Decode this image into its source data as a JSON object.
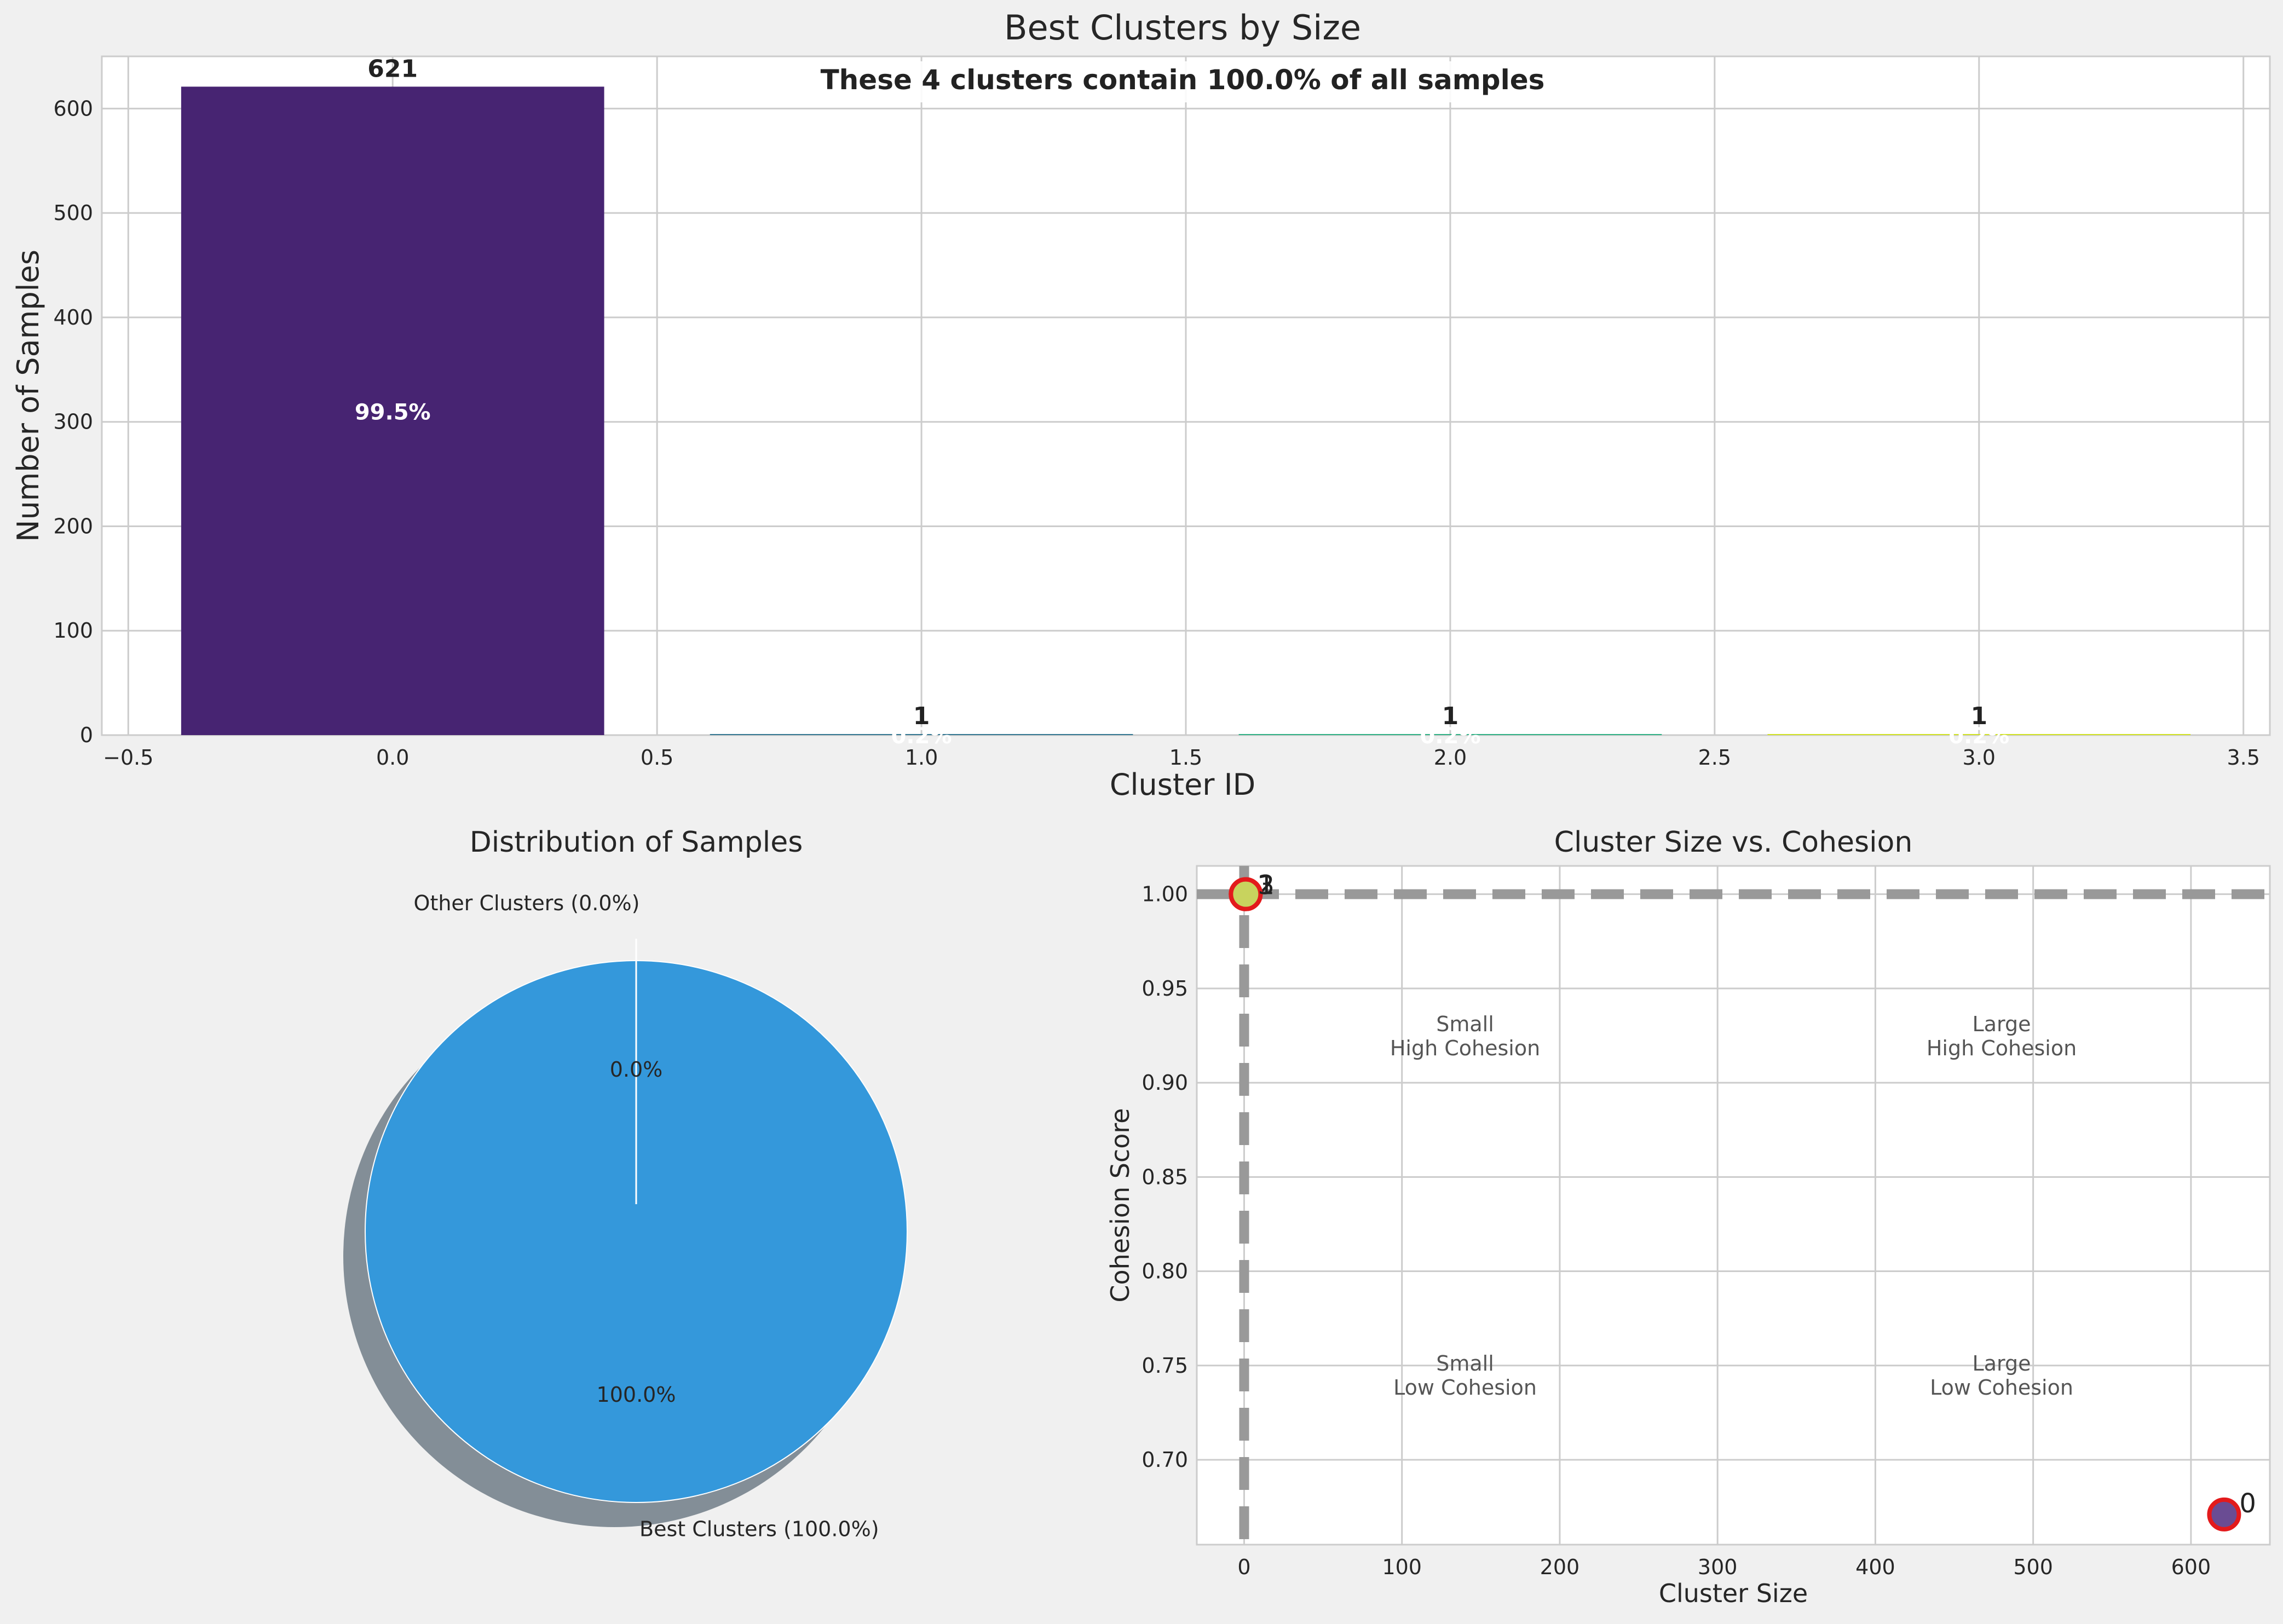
{
  "chart_data": [
    {
      "type": "bar",
      "title": "Best Clusters by Size",
      "annotation": "These 4 clusters contain 100.0% of all samples",
      "xlabel": "Cluster ID",
      "ylabel": "Number of Samples",
      "xlim": [
        -0.55,
        3.55
      ],
      "ylim": [
        0,
        650
      ],
      "xticks": [
        -0.5,
        0.0,
        0.5,
        1.0,
        1.5,
        2.0,
        2.5,
        3.0,
        3.5
      ],
      "xtick_labels": [
        "−0.5",
        "0.0",
        "0.5",
        "1.0",
        "1.5",
        "2.0",
        "2.5",
        "3.0",
        "3.5"
      ],
      "yticks": [
        0,
        100,
        200,
        300,
        400,
        500,
        600
      ],
      "categories": [
        0,
        1,
        2,
        3
      ],
      "values": [
        621,
        1,
        1,
        1
      ],
      "value_labels": [
        "621",
        "1",
        "1",
        "1"
      ],
      "percent_labels": [
        "99.5%",
        "0.2%",
        "0.2%",
        "0.2%"
      ],
      "colors": [
        "#472472",
        "#2c728e",
        "#28ae80",
        "#cfe11c"
      ],
      "grid": true
    },
    {
      "type": "pie",
      "title": "Distribution of Samples",
      "slices": [
        {
          "label": "Best Clusters (100.0%)",
          "value": 100.0,
          "pct_label": "100.0%",
          "color": "#3498db"
        },
        {
          "label": "Other Clusters (0.0%)",
          "value": 0.0,
          "pct_label": "0.0%",
          "color": "#95a5a6"
        }
      ],
      "shadow": true
    },
    {
      "type": "scatter",
      "title": "Cluster Size vs. Cohesion",
      "xlabel": "Cluster Size",
      "ylabel": "Cohesion Score",
      "xlim": [
        -30,
        650
      ],
      "ylim": [
        0.655,
        1.015
      ],
      "xticks": [
        0,
        100,
        200,
        300,
        400,
        500,
        600
      ],
      "yticks": [
        0.7,
        0.75,
        0.8,
        0.85,
        0.9,
        0.95,
        1.0
      ],
      "ytick_labels": [
        "0.70",
        "0.75",
        "0.80",
        "0.85",
        "0.90",
        "0.95",
        "1.00"
      ],
      "points": [
        {
          "label": "0",
          "x": 621,
          "y": 0.671,
          "color": "#6a4c93"
        },
        {
          "label": "1",
          "x": 1,
          "y": 1.0,
          "color": "#3a9a8c"
        },
        {
          "label": "2",
          "x": 1,
          "y": 1.0,
          "color": "#7fc97f"
        },
        {
          "label": "3",
          "x": 1,
          "y": 1.0,
          "color": "#c8d35e"
        }
      ],
      "ref_lines": {
        "x": 0,
        "y": 1.0
      },
      "quadrant_labels": [
        {
          "text": "Small\nHigh Cohesion",
          "x": 140,
          "y": 0.925
        },
        {
          "text": "Large\nHigh Cohesion",
          "x": 480,
          "y": 0.925
        },
        {
          "text": "Small\nLow Cohesion",
          "x": 140,
          "y": 0.745
        },
        {
          "text": "Large\nLow Cohesion",
          "x": 480,
          "y": 0.745
        }
      ],
      "highlight_color": "#e31a1c",
      "grid": true
    }
  ]
}
